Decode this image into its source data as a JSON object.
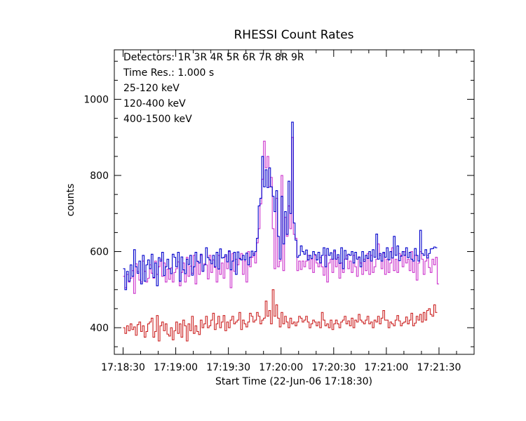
{
  "chart_data": {
    "type": "line",
    "title": "RHESSI Count Rates",
    "xlabel": "Start Time (22-Jun-06 17:18:30)",
    "ylabel": "counts",
    "x_unit": "seconds since 17:18:30",
    "xlim": [
      -5,
      200
    ],
    "ylim": [
      330,
      1130
    ],
    "x_ticks": [
      {
        "value": 0,
        "label": "17:18:30"
      },
      {
        "value": 30,
        "label": "17:19:00"
      },
      {
        "value": 60,
        "label": "17:19:30"
      },
      {
        "value": 90,
        "label": "17:20:00"
      },
      {
        "value": 120,
        "label": "17:20:30"
      },
      {
        "value": 150,
        "label": "17:21:00"
      },
      {
        "value": 180,
        "label": "17:21:30"
      }
    ],
    "y_ticks": [
      400,
      600,
      800,
      1000
    ],
    "grid": false,
    "legend_position": "top-left",
    "annotations": [
      {
        "id": "detectors",
        "text": "Detectors:  1R 3R 4R 5R 6R 7R 8R 9R"
      },
      {
        "id": "time_res",
        "text": "Time Res.: 1.000 s"
      }
    ],
    "series": [
      {
        "name": "25-120 keV",
        "color": "#0000cc",
        "x_start": 0,
        "x_step": 1,
        "values": [
          555,
          500,
          548,
          522,
          565,
          535,
          605,
          560,
          543,
          575,
          515,
          590,
          522,
          565,
          578,
          555,
          593,
          532,
          570,
          510,
          584,
          575,
          598,
          537,
          560,
          580,
          555,
          542,
          593,
          585,
          560,
          598,
          522,
          586,
          552,
          542,
          580,
          566,
          590,
          538,
          560,
          598,
          574,
          570,
          593,
          548,
          565,
          610,
          584,
          578,
          568,
          590,
          560,
          598,
          554,
          607,
          583,
          585,
          592,
          573,
          602,
          552,
          575,
          598,
          540,
          599,
          582,
          578,
          590,
          578,
          596,
          565,
          585,
          601,
          590,
          600,
          635,
          720,
          740,
          850,
          770,
          815,
          768,
          820,
          770,
          745,
          705,
          760,
          640,
          580,
          745,
          620,
          705,
          645,
          785,
          700,
          940,
          675,
          630,
          585,
          590,
          615,
          600,
          593,
          604,
          578,
          590,
          582,
          600,
          592,
          578,
          598,
          570,
          590,
          610,
          560,
          608,
          590,
          597,
          580,
          604,
          580,
          592,
          569,
          610,
          555,
          603,
          580,
          593,
          590,
          600,
          570,
          598,
          580,
          586,
          560,
          600,
          574,
          590,
          582,
          600,
          575,
          605,
          585,
          646,
          580,
          595,
          575,
          598,
          585,
          610,
          578,
          600,
          583,
          640,
          590,
          615,
          576,
          588,
          600,
          590,
          610,
          584,
          598,
          580,
          575,
          608,
          590,
          575,
          656,
          595,
          590,
          605,
          583,
          595,
          607,
          608,
          612,
          610
        ]
      },
      {
        "name": "120-400 keV",
        "color": "#cc33cc",
        "x_start": 0,
        "x_step": 1,
        "values": [
          535,
          505,
          540,
          520,
          530,
          550,
          490,
          568,
          548,
          525,
          520,
          575,
          548,
          520,
          530,
          565,
          543,
          530,
          575,
          540,
          560,
          580,
          535,
          570,
          520,
          554,
          527,
          557,
          520,
          545,
          555,
          573,
          510,
          545,
          570,
          520,
          585,
          535,
          562,
          543,
          590,
          515,
          575,
          540,
          590,
          548,
          568,
          565,
          528,
          590,
          545,
          578,
          558,
          520,
          590,
          540,
          570,
          530,
          588,
          555,
          600,
          505,
          595,
          548,
          580,
          565,
          580,
          595,
          540,
          575,
          520,
          600,
          560,
          585,
          595,
          570,
          623,
          660,
          725,
          790,
          890,
          820,
          850,
          770,
          795,
          660,
          555,
          740,
          560,
          575,
          800,
          550,
          690,
          640,
          720,
          660,
          900,
          645,
          635,
          550,
          575,
          553,
          575,
          560,
          575,
          590,
          555,
          580,
          545,
          590,
          570,
          560,
          585,
          560,
          538,
          590,
          520,
          570,
          580,
          545,
          600,
          560,
          585,
          530,
          570,
          545,
          580,
          590,
          555,
          575,
          545,
          590,
          560,
          535,
          585,
          570,
          540,
          580,
          550,
          595,
          540,
          590,
          545,
          560,
          580,
          620,
          590,
          555,
          595,
          540,
          580,
          545,
          570,
          610,
          550,
          580,
          545,
          595,
          590,
          560,
          600,
          570,
          580,
          550,
          600,
          545,
          590,
          525,
          570,
          600,
          580,
          540,
          575,
          590,
          558,
          545,
          580,
          565,
          585,
          515
        ]
      },
      {
        "name": "400-1500 keV",
        "color": "#cc2222",
        "x_start": 0,
        "x_step": 1,
        "values": [
          400,
          385,
          405,
          392,
          410,
          395,
          402,
          380,
          408,
          415,
          390,
          405,
          375,
          390,
          410,
          415,
          425,
          375,
          390,
          432,
          365,
          405,
          415,
          392,
          410,
          383,
          378,
          400,
          368,
          392,
          415,
          385,
          410,
          375,
          420,
          405,
          365,
          410,
          392,
          430,
          385,
          405,
          390,
          382,
          420,
          400,
          410,
          430,
          400,
          405,
          420,
          438,
          395,
          410,
          430,
          400,
          415,
          432,
          392,
          415,
          400,
          420,
          430,
          410,
          415,
          420,
          440,
          395,
          420,
          410,
          402,
          415,
          438,
          430,
          415,
          420,
          440,
          430,
          410,
          420,
          425,
          470,
          430,
          445,
          410,
          500,
          430,
          460,
          425,
          402,
          440,
          410,
          430,
          415,
          400,
          425,
          410,
          415,
          405,
          415,
          430,
          425,
          415,
          420,
          430,
          415,
          400,
          410,
          420,
          415,
          405,
          415,
          400,
          440,
          420,
          405,
          410,
          400,
          420,
          395,
          410,
          420,
          410,
          400,
          415,
          420,
          430,
          410,
          418,
          405,
          425,
          400,
          420,
          415,
          435,
          420,
          415,
          410,
          420,
          430,
          410,
          415,
          400,
          420,
          415,
          430,
          410,
          425,
          445,
          420,
          420,
          400,
          415,
          410,
          405,
          420,
          432,
          418,
          405,
          412,
          415,
          428,
          410,
          420,
          438,
          405,
          412,
          430,
          420,
          435,
          415,
          440,
          420,
          445,
          450,
          435,
          430,
          460,
          440
        ]
      }
    ]
  }
}
